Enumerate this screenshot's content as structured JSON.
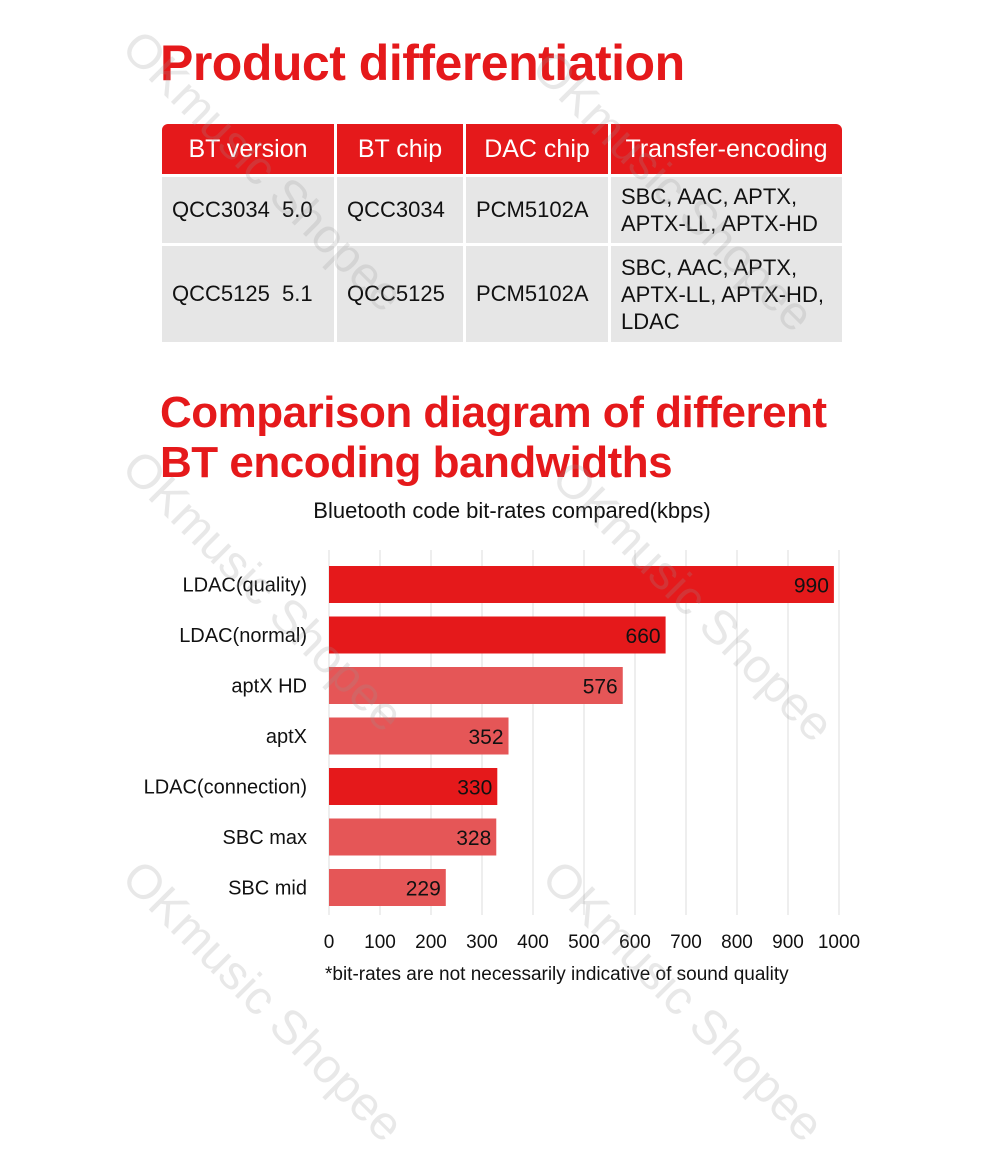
{
  "title1": "Product differentiation",
  "table": {
    "headers": [
      "BT version",
      "BT chip",
      "DAC chip",
      "Transfer-encoding"
    ],
    "rows": [
      [
        "QCC3034  5.0",
        "QCC3034",
        "PCM5102A",
        "SBC, AAC, APTX,\nAPTX-LL, APTX-HD"
      ],
      [
        "QCC5125  5.1",
        "QCC5125",
        "PCM5102A",
        "SBC, AAC, APTX,\nAPTX-LL, APTX-HD,\nLDAC"
      ]
    ]
  },
  "title2": "Comparison diagram of different BT encoding bandwidths",
  "footnote": "*bit-rates are not necessarily indicative of sound quality",
  "watermark": "OKmusic Shopee",
  "colors": {
    "accent": "#e5191b",
    "bar_dark": "#e5191b",
    "bar_light": "#e55657",
    "table_cell": "#e6e6e6"
  },
  "chart_data": {
    "type": "bar",
    "orientation": "horizontal",
    "title": "Bluetooth code bit-rates compared(kbps)",
    "categories": [
      "LDAC(quality)",
      "LDAC(normal)",
      "aptX HD",
      "aptX",
      "LDAC(connection)",
      "SBC max",
      "SBC mid"
    ],
    "values": [
      990,
      660,
      576,
      352,
      330,
      328,
      229
    ],
    "bar_colors": [
      "#e5191b",
      "#e5191b",
      "#e55657",
      "#e55657",
      "#e5191b",
      "#e55657",
      "#e55657"
    ],
    "xlim": [
      0,
      1000
    ],
    "xticks": [
      0,
      100,
      200,
      300,
      400,
      500,
      600,
      700,
      800,
      900,
      1000
    ],
    "grid": true
  }
}
